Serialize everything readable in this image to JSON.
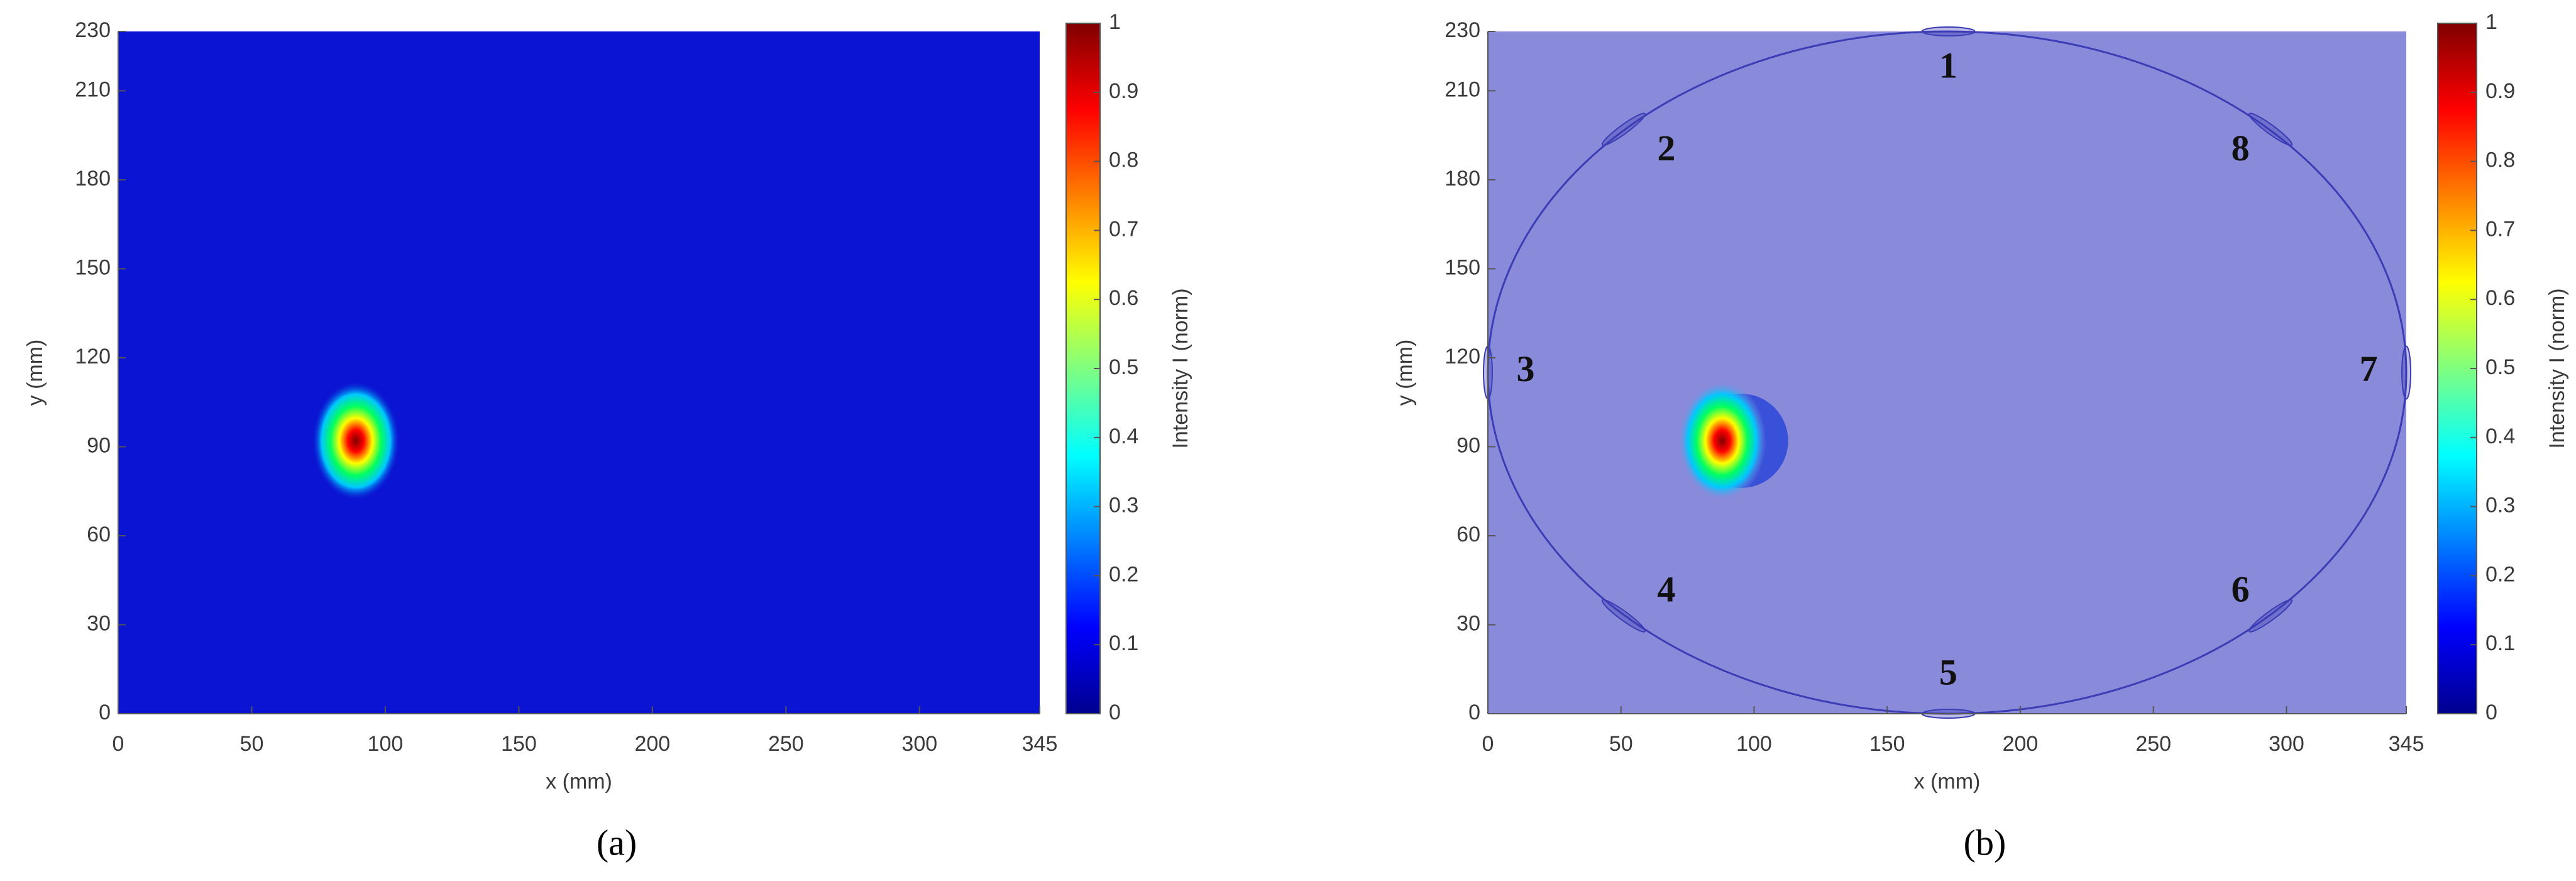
{
  "chart_data": [
    {
      "type": "heatmap",
      "x_label": "x (mm)",
      "y_label": "y (mm)",
      "caption": "(a)",
      "xlim": [
        0,
        345
      ],
      "ylim": [
        0,
        230
      ],
      "xticks": [
        0,
        50,
        100,
        150,
        200,
        250,
        300,
        345
      ],
      "yticks": [
        0,
        30,
        60,
        90,
        120,
        150,
        180,
        210,
        230
      ],
      "background": "#0a14d2",
      "peaks": [
        {
          "x": 89,
          "y": 92,
          "value": 1
        }
      ],
      "colorbar": {
        "label": "Intensity I (norm)",
        "lim": [
          0,
          1
        ],
        "ticks": [
          0,
          0.1,
          0.2,
          0.3,
          0.4,
          0.5,
          0.6,
          0.7,
          0.8,
          0.9,
          1
        ]
      }
    },
    {
      "type": "heatmap",
      "x_label": "x (mm)",
      "y_label": "y (mm)",
      "caption": "(b)",
      "xlim": [
        0,
        345
      ],
      "ylim": [
        0,
        230
      ],
      "xticks": [
        0,
        50,
        100,
        150,
        200,
        250,
        300,
        345
      ],
      "yticks": [
        0,
        30,
        60,
        90,
        120,
        150,
        180,
        210,
        230
      ],
      "background": "#8a8adb",
      "boundary_color": "#3c3cb4",
      "peaks": [
        {
          "x": 88,
          "y": 92,
          "value": 1
        }
      ],
      "sensors": [
        {
          "label": "1",
          "x": 173,
          "y": 230
        },
        {
          "label": "2",
          "x": 51,
          "y": 197
        },
        {
          "label": "3",
          "x": 0,
          "y": 115
        },
        {
          "label": "4",
          "x": 51,
          "y": 33
        },
        {
          "label": "5",
          "x": 173,
          "y": 0
        },
        {
          "label": "6",
          "x": 294,
          "y": 33
        },
        {
          "label": "7",
          "x": 345,
          "y": 115
        },
        {
          "label": "8",
          "x": 294,
          "y": 197
        }
      ],
      "colorbar": {
        "label": "Intensity I (norm)",
        "lim": [
          0,
          1
        ],
        "ticks": [
          0,
          0.1,
          0.2,
          0.3,
          0.4,
          0.5,
          0.6,
          0.7,
          0.8,
          0.9,
          1
        ]
      }
    }
  ]
}
